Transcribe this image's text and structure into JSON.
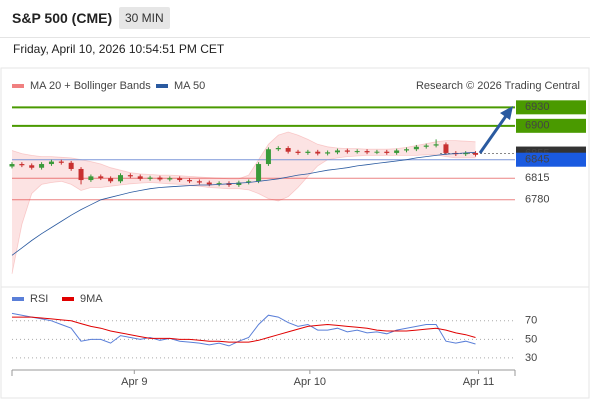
{
  "header": {
    "title": "S&P 500 (CME)",
    "interval": "30 MIN",
    "timestamp": "Friday, April 10, 2026 10:54:51 PM CET"
  },
  "chart_data": [
    {
      "type": "candlestick",
      "credit": "Research © 2026 Trading Central",
      "xlim": [
        0,
        51
      ],
      "ylim": [
        6645,
        6950
      ],
      "up_color": "#3a9a3a",
      "down_color": "#c83030",
      "x": [
        0,
        1,
        2,
        3,
        4,
        5,
        6,
        7,
        8,
        9,
        10,
        11,
        12,
        13,
        14,
        15,
        16,
        17,
        18,
        19,
        20,
        21,
        22,
        23,
        24,
        25,
        26,
        27,
        28,
        29,
        30,
        31,
        32,
        33,
        34,
        35,
        36,
        37,
        38,
        39,
        40,
        41,
        42,
        43,
        44,
        45,
        46,
        47
      ],
      "open": [
        6834,
        6838,
        6836,
        6832,
        6838,
        6842,
        6840,
        6830,
        6812,
        6818,
        6815,
        6810,
        6820,
        6818,
        6814,
        6816,
        6813,
        6815,
        6812,
        6810,
        6808,
        6805,
        6807,
        6804,
        6808,
        6810,
        6838,
        6862,
        6864,
        6858,
        6856,
        6858,
        6855,
        6857,
        6860,
        6858,
        6859,
        6857,
        6858,
        6856,
        6860,
        6862,
        6866,
        6868,
        6870,
        6856,
        6854,
        6856
      ],
      "high": [
        6841,
        6841,
        6839,
        6841,
        6845,
        6845,
        6843,
        6833,
        6821,
        6821,
        6818,
        6823,
        6823,
        6821,
        6819,
        6819,
        6818,
        6818,
        6815,
        6813,
        6811,
        6810,
        6810,
        6811,
        6813,
        6841,
        6865,
        6867,
        6867,
        6861,
        6861,
        6861,
        6860,
        6863,
        6863,
        6862,
        6862,
        6861,
        6861,
        6863,
        6865,
        6869,
        6871,
        6878,
        6873,
        6859,
        6859,
        6859
      ],
      "low": [
        6831,
        6833,
        6829,
        6829,
        6835,
        6837,
        6827,
        6805,
        6809,
        6812,
        6807,
        6807,
        6815,
        6811,
        6811,
        6810,
        6810,
        6809,
        6807,
        6805,
        6802,
        6802,
        6801,
        6801,
        6805,
        6807,
        6835,
        6859,
        6855,
        6853,
        6853,
        6852,
        6852,
        6854,
        6855,
        6855,
        6854,
        6854,
        6853,
        6853,
        6857,
        6859,
        6863,
        6865,
        6853,
        6851,
        6851,
        6850
      ],
      "close": [
        6838,
        6836,
        6832,
        6838,
        6842,
        6840,
        6830,
        6812,
        6818,
        6815,
        6810,
        6820,
        6818,
        6814,
        6816,
        6813,
        6815,
        6812,
        6810,
        6808,
        6805,
        6807,
        6804,
        6808,
        6810,
        6838,
        6862,
        6864,
        6858,
        6856,
        6858,
        6855,
        6857,
        6860,
        6858,
        6859,
        6857,
        6858,
        6856,
        6860,
        6862,
        6866,
        6868,
        6870,
        6856,
        6854,
        6856,
        6853
      ],
      "bands": {
        "name": "MA 20 + Bollinger Bands",
        "color": "#f08080",
        "upper": [
          6860,
          6855,
          6852,
          6850,
          6850,
          6849,
          6848,
          6845,
          6842,
          6838,
          6832,
          6828,
          6824,
          6822,
          6821,
          6820,
          6820,
          6819,
          6818,
          6817,
          6816,
          6815,
          6814,
          6814,
          6820,
          6845,
          6870,
          6885,
          6890,
          6885,
          6878,
          6870,
          6866,
          6864,
          6863,
          6863,
          6862,
          6862,
          6862,
          6863,
          6865,
          6868,
          6871,
          6874,
          6876,
          6876,
          6875,
          6874
        ],
        "lower": [
          6660,
          6740,
          6790,
          6805,
          6808,
          6810,
          6805,
          6795,
          6800,
          6800,
          6802,
          6804,
          6806,
          6807,
          6808,
          6807,
          6806,
          6805,
          6803,
          6802,
          6800,
          6799,
          6798,
          6798,
          6796,
          6790,
          6782,
          6778,
          6785,
          6800,
          6818,
          6835,
          6845,
          6848,
          6850,
          6851,
          6852,
          6852,
          6852,
          6852,
          6852,
          6852,
          6853,
          6853,
          6850,
          6848,
          6848,
          6848
        ]
      },
      "series": [
        {
          "name": "MA 50",
          "color": "#2a5aa0",
          "values": [
            6690,
            6702,
            6714,
            6725,
            6735,
            6745,
            6755,
            6764,
            6772,
            6780,
            6784,
            6788,
            6792,
            6795,
            6798,
            6800,
            6801,
            6802,
            6803,
            6804,
            6804,
            6805,
            6806,
            6807,
            6808,
            6810,
            6812,
            6814,
            6817,
            6820,
            6822,
            6825,
            6828,
            6830,
            6832,
            6835,
            6837,
            6839,
            6841,
            6843,
            6845,
            6848,
            6850,
            6852,
            6854,
            6855,
            6856,
            6857
          ]
        }
      ],
      "levels": [
        {
          "value": 6930,
          "color": "#4a9a00",
          "box": true,
          "dash": false
        },
        {
          "value": 6900,
          "color": "#4a9a00",
          "box": true,
          "dash": false
        },
        {
          "value": 6855,
          "color": "#333333",
          "box": true,
          "dash": true
        },
        {
          "value": 6845,
          "color": "#1a5ae0",
          "box": true,
          "dash": false
        },
        {
          "value": 6815,
          "color": "#e03030",
          "box": false,
          "dash": false
        },
        {
          "value": 6780,
          "color": "#e03030",
          "box": false,
          "dash": false
        }
      ]
    },
    {
      "type": "line",
      "xlim": [
        0,
        51
      ],
      "ylim": [
        17,
        87
      ],
      "yticks": [
        70,
        50,
        30
      ],
      "xticks": [
        {
          "value": 12.4,
          "label": "Apr 9"
        },
        {
          "value": 30.2,
          "label": "Apr 10"
        },
        {
          "value": 47.3,
          "label": "Apr 11"
        }
      ],
      "x": [
        0,
        1,
        2,
        3,
        4,
        5,
        6,
        7,
        8,
        9,
        10,
        11,
        12,
        13,
        14,
        15,
        16,
        17,
        18,
        19,
        20,
        21,
        22,
        23,
        24,
        25,
        26,
        27,
        28,
        29,
        30,
        31,
        32,
        33,
        34,
        35,
        36,
        37,
        38,
        39,
        40,
        41,
        42,
        43,
        44,
        45,
        46,
        47
      ],
      "series": [
        {
          "name": "RSI",
          "color": "#5a7fd8",
          "values": [
            78,
            76,
            74,
            72,
            70,
            66,
            62,
            48,
            50,
            50,
            46,
            54,
            52,
            50,
            52,
            49,
            51,
            48,
            47,
            46,
            44,
            46,
            43,
            48,
            52,
            66,
            76,
            74,
            68,
            64,
            66,
            60,
            60,
            62,
            58,
            60,
            57,
            58,
            56,
            60,
            62,
            64,
            66,
            66,
            48,
            46,
            48,
            45
          ]
        },
        {
          "name": "9MA",
          "color": "#e00000",
          "values": [
            74,
            74,
            74,
            73,
            72,
            71,
            70,
            67,
            64,
            62,
            59,
            57,
            55,
            53,
            51,
            51,
            51,
            50,
            50,
            49,
            48,
            48,
            47,
            47,
            47,
            49,
            52,
            55,
            58,
            61,
            64,
            65,
            66,
            65,
            64,
            63,
            62,
            60,
            59,
            59,
            59,
            60,
            61,
            62,
            60,
            57,
            55,
            52
          ]
        }
      ]
    }
  ]
}
